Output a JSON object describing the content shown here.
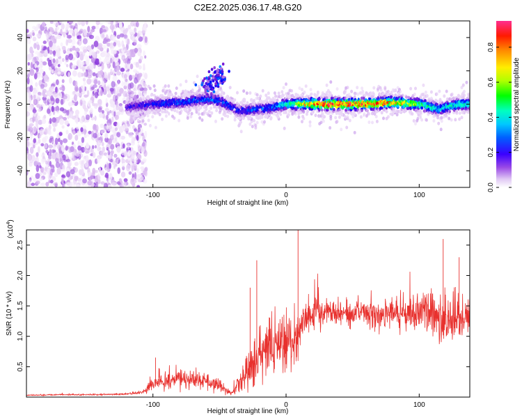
{
  "figure": {
    "title": "C2E2.2025.036.17.48.G20"
  },
  "chart_data": [
    {
      "type": "heatmap",
      "xlabel": "Height of straight line (km)",
      "ylabel": "Frequency (Hz)",
      "xlim": [
        -195,
        138
      ],
      "ylim": [
        -50,
        50
      ],
      "x_ticks": [
        "-100",
        "0",
        "100"
      ],
      "x_tick_values": [
        -100,
        0,
        100
      ],
      "y_ticks": [
        "40",
        "20",
        "0",
        "-20",
        "-40"
      ],
      "y_tick_values": [
        40,
        20,
        0,
        -20,
        -40
      ],
      "colorbar": {
        "label": "Normalized spectral amplitude",
        "range": [
          0,
          0.95
        ],
        "ticks": [
          "0.0",
          "0.2",
          "0.4",
          "0.6",
          "0.8"
        ],
        "tick_values": [
          0.0,
          0.2,
          0.4,
          0.6,
          0.8
        ],
        "colormap": [
          "#ffffff",
          "#d8b4f0",
          "#7a1fd6",
          "#0000ff",
          "#00bfff",
          "#00ffd0",
          "#00ff00",
          "#ffff00",
          "#ff9900",
          "#ff0000",
          "#ff2e8f"
        ]
      },
      "features": {
        "noise_region_x": [
          -195,
          -105
        ],
        "signal_ridge": [
          {
            "x": -120,
            "y": -2,
            "amp": 0.25
          },
          {
            "x": -100,
            "y": 0,
            "amp": 0.3
          },
          {
            "x": -80,
            "y": 1,
            "amp": 0.35
          },
          {
            "x": -60,
            "y": 3,
            "amp": 0.35
          },
          {
            "x": -50,
            "y": 2,
            "amp": 0.35
          },
          {
            "x": -35,
            "y": -4,
            "amp": 0.3
          },
          {
            "x": -20,
            "y": -3,
            "amp": 0.35
          },
          {
            "x": -10,
            "y": -2,
            "amp": 0.35
          },
          {
            "x": 0,
            "y": 0,
            "amp": 0.5
          },
          {
            "x": 20,
            "y": 0,
            "amp": 0.85
          },
          {
            "x": 40,
            "y": 0,
            "amp": 0.9
          },
          {
            "x": 60,
            "y": 0,
            "amp": 0.85
          },
          {
            "x": 80,
            "y": 1,
            "amp": 0.8
          },
          {
            "x": 100,
            "y": 0,
            "amp": 0.6
          },
          {
            "x": 115,
            "y": -3,
            "amp": 0.45
          },
          {
            "x": 130,
            "y": 0,
            "amp": 0.5
          }
        ],
        "upper_blob": [
          {
            "x": -58,
            "y": 12,
            "amp": 0.3
          },
          {
            "x": -50,
            "y": 17,
            "amp": 0.3
          }
        ]
      }
    },
    {
      "type": "line",
      "xlabel": "Height of straight line (km)",
      "ylabel": "SNR (10 * v/v)",
      "y_multiplier": "(x10",
      "y_multiplier_exp": "4",
      "y_multiplier_close": ")",
      "xlim": [
        -195,
        138
      ],
      "ylim": [
        0,
        2.75
      ],
      "x_ticks": [
        "-100",
        "0",
        "100"
      ],
      "x_tick_values": [
        -100,
        0,
        100
      ],
      "y_ticks": [
        "2.5",
        "2.0",
        "1.5",
        "1.0",
        "0.5"
      ],
      "y_tick_values": [
        2.5,
        2.0,
        1.5,
        1.0,
        0.5
      ],
      "color": "#e8312e",
      "series": [
        {
          "x": [
            -195,
            -170,
            -140,
            -120,
            -108,
            -100,
            -90,
            -80,
            -70,
            -60,
            -50,
            -45,
            -40,
            -35,
            -30,
            -25,
            -20,
            -15,
            -10,
            -5,
            0,
            5,
            10,
            15,
            20,
            30,
            40,
            50,
            60,
            70,
            80,
            90,
            100,
            110,
            120,
            130,
            138
          ],
          "y": [
            0.03,
            0.04,
            0.04,
            0.05,
            0.08,
            0.22,
            0.28,
            0.3,
            0.3,
            0.27,
            0.18,
            0.1,
            0.06,
            0.25,
            0.4,
            0.55,
            0.65,
            0.72,
            0.82,
            0.85,
            0.85,
            0.92,
            1.1,
            1.3,
            1.35,
            1.4,
            1.42,
            1.38,
            1.4,
            1.35,
            1.38,
            1.36,
            1.4,
            1.38,
            1.25,
            1.3,
            1.35
          ],
          "spread": [
            0.01,
            0.01,
            0.01,
            0.01,
            0.04,
            0.12,
            0.13,
            0.14,
            0.14,
            0.12,
            0.1,
            0.05,
            0.04,
            0.2,
            0.3,
            0.35,
            0.4,
            0.4,
            0.4,
            0.42,
            0.45,
            0.45,
            0.4,
            0.3,
            0.25,
            0.22,
            0.22,
            0.22,
            0.22,
            0.22,
            0.22,
            0.24,
            0.25,
            0.3,
            0.4,
            0.35,
            0.3
          ]
        }
      ],
      "annotations": [
        {
          "x": -98,
          "y": 0.65
        },
        {
          "x": -22,
          "y": 2.25
        },
        {
          "x": -27,
          "y": 1.8
        },
        {
          "x": 9,
          "y": 2.75
        },
        {
          "x": 118,
          "y": 2.6
        },
        {
          "x": 130,
          "y": 2.3
        }
      ]
    }
  ]
}
